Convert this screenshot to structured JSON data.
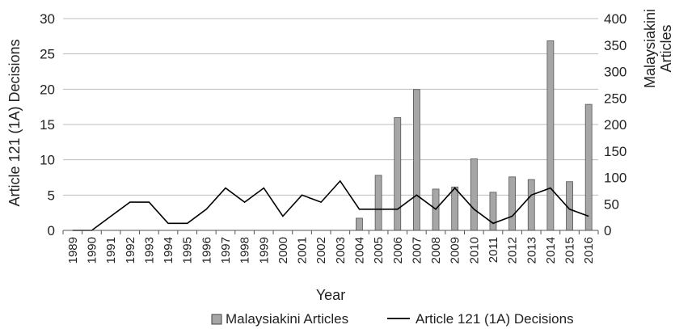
{
  "chart_data": {
    "type": "bar+line",
    "categories": [
      "1989",
      "1990",
      "1991",
      "1992",
      "1993",
      "1994",
      "1995",
      "1996",
      "1997",
      "1998",
      "1999",
      "2000",
      "2001",
      "2002",
      "2003",
      "2004",
      "2005",
      "2006",
      "2007",
      "2008",
      "2009",
      "2010",
      "2011",
      "2012",
      "2013",
      "2014",
      "2015",
      "2016"
    ],
    "series": [
      {
        "name": "Malaysiakini Articles",
        "type": "bar",
        "axis": "right",
        "color": "#a6a6a6",
        "values": [
          0,
          0,
          0,
          0,
          0,
          0,
          0,
          0,
          0,
          0,
          0,
          0,
          0,
          0,
          0,
          23,
          104,
          213,
          266,
          78,
          82,
          135,
          72,
          101,
          96,
          358,
          92,
          238
        ]
      },
      {
        "name": "Article 121 (1A) Decisions",
        "type": "line",
        "axis": "left",
        "color": "#000000",
        "values": [
          0,
          0,
          2,
          4,
          4,
          1,
          1,
          3,
          6,
          4,
          6,
          2,
          5,
          4,
          7,
          3,
          3,
          3,
          5,
          3,
          6,
          3,
          1,
          2,
          5,
          6,
          3,
          2
        ]
      }
    ],
    "xlabel": "Year",
    "ylabel_left": "Article 121 (1A) Decisions",
    "ylabel_right": "Malaysiakini Articles",
    "ylim_left": [
      0,
      30
    ],
    "yticks_left": [
      0,
      5,
      10,
      15,
      20,
      25,
      30
    ],
    "ylim_right": [
      0,
      400
    ],
    "yticks_right": [
      0,
      50,
      100,
      150,
      200,
      250,
      300,
      350,
      400
    ],
    "grid": true,
    "legend_position": "bottom"
  }
}
